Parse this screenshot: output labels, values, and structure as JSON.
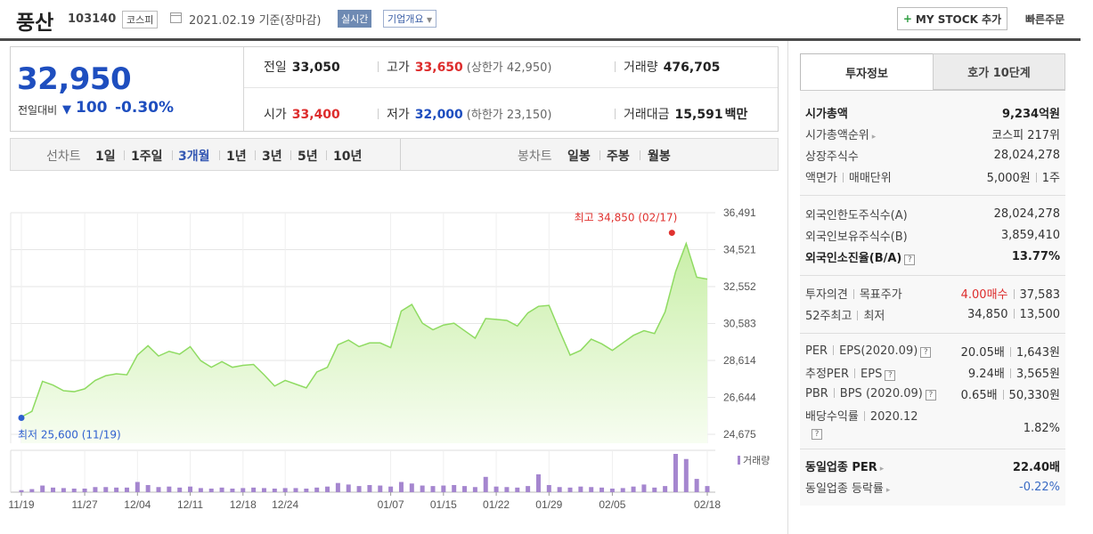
{
  "header": {
    "name": "풍산",
    "code": "103140",
    "market": "코스피",
    "date": "2021.02.19 기준(장마감)",
    "realtime": "실시간",
    "company_info": "기업개요",
    "mystock": "MY STOCK 추가",
    "quick_order": "빠른주문"
  },
  "summary": {
    "price": "32,950",
    "change_label": "전일대비",
    "change": "100",
    "change_pct": "-0.30%",
    "prev_label": "전일",
    "prev": "33,050",
    "high_label": "고가",
    "high": "33,650",
    "upper_limit": "(상한가 42,950)",
    "volume_label": "거래량",
    "volume": "476,705",
    "open_label": "시가",
    "open": "33,400",
    "low_label": "저가",
    "low": "32,000",
    "lower_limit": "(하한가 23,150)",
    "amount_label": "거래대금",
    "amount": "15,591",
    "amount_unit": "백만"
  },
  "chart_tabs": {
    "line_label": "선차트",
    "periods": [
      "1일",
      "1주일",
      "3개월",
      "1년",
      "3년",
      "5년",
      "10년"
    ],
    "active_period": "3개월",
    "candle_label": "봉차트",
    "candles": [
      "일봉",
      "주봉",
      "월봉"
    ]
  },
  "chart_data": {
    "type": "area",
    "price_axis": [
      36491,
      34521,
      32552,
      30583,
      28614,
      26644,
      24675
    ],
    "ylim": [
      24675,
      36491
    ],
    "x_ticks": [
      "11/19",
      "11/27",
      "12/04",
      "12/11",
      "12/18",
      "12/24",
      "01/07",
      "01/15",
      "01/22",
      "01/29",
      "02/05",
      "02/18"
    ],
    "prices": [
      25600,
      25900,
      27500,
      27300,
      27000,
      26950,
      27100,
      27550,
      27800,
      27900,
      27850,
      28900,
      29400,
      28850,
      29100,
      28950,
      29350,
      28600,
      28250,
      28550,
      28250,
      28350,
      28400,
      27850,
      27250,
      27550,
      27350,
      27150,
      28000,
      28250,
      29450,
      29700,
      29350,
      29550,
      29550,
      29300,
      31250,
      31600,
      30600,
      30250,
      30500,
      30600,
      30200,
      29800,
      30850,
      30800,
      30750,
      30450,
      31150,
      31500,
      31550,
      30200,
      28900,
      29150,
      29750,
      29500,
      29150,
      29550,
      29950,
      30200,
      30050,
      31200,
      33350,
      34850,
      33050,
      32950
    ],
    "volume_label": "거래량",
    "volumes": [
      4,
      6,
      13,
      9,
      8,
      7,
      7,
      10,
      10,
      9,
      9,
      20,
      14,
      10,
      11,
      9,
      11,
      8,
      7,
      9,
      7,
      8,
      9,
      8,
      7,
      8,
      8,
      7,
      9,
      11,
      18,
      15,
      12,
      14,
      13,
      11,
      20,
      17,
      13,
      12,
      13,
      14,
      12,
      10,
      30,
      11,
      10,
      9,
      12,
      35,
      14,
      10,
      9,
      11,
      10,
      9,
      7,
      8,
      11,
      15,
      9,
      12,
      75,
      65,
      26,
      12
    ],
    "max_annotation": "최고 34,850 (02/17)",
    "min_annotation": "최저 25,600 (11/19)"
  },
  "panel": {
    "tab_active": "투자정보",
    "tab_other": "호가 10단계",
    "market_cap_label": "시가총액",
    "market_cap": "9,234억원",
    "cap_rank_label": "시가총액순위",
    "cap_rank": "코스피 217위",
    "shares_label": "상장주식수",
    "shares": "28,024,278",
    "par_label": "액면가",
    "unit_label": "매매단위",
    "par": "5,000원",
    "unit": "1주",
    "foreign_limit_label": "외국인한도주식수(A)",
    "foreign_limit": "28,024,278",
    "foreign_hold_label": "외국인보유주식수(B)",
    "foreign_hold": "3,859,410",
    "foreign_ratio_label": "외국인소진율(B/A)",
    "foreign_ratio": "13.77%",
    "opinion_label": "투자의견",
    "target_label": "목표주가",
    "opinion": "4.00매수",
    "target": "37,583",
    "w52_label": "52주최고",
    "w52_low_label": "최저",
    "w52_high": "34,850",
    "w52_low": "13,500",
    "per_label": "PER",
    "eps_label": "EPS(2020.09)",
    "per": "20.05배",
    "eps": "1,643원",
    "eper_label": "추정PER",
    "eeps_label": "EPS",
    "eper": "9.24배",
    "eeps": "3,565원",
    "pbr_label": "PBR",
    "bps_label": "BPS (2020.09)",
    "pbr": "0.65배",
    "bps": "50,330원",
    "div_label": "배당수익률",
    "div_year": "2020.12",
    "div": "1.82%",
    "ind_per_label": "동일업종 PER",
    "ind_per": "22.40배",
    "ind_rate_label": "동일업종 등락률",
    "ind_rate": "-0.22%"
  }
}
